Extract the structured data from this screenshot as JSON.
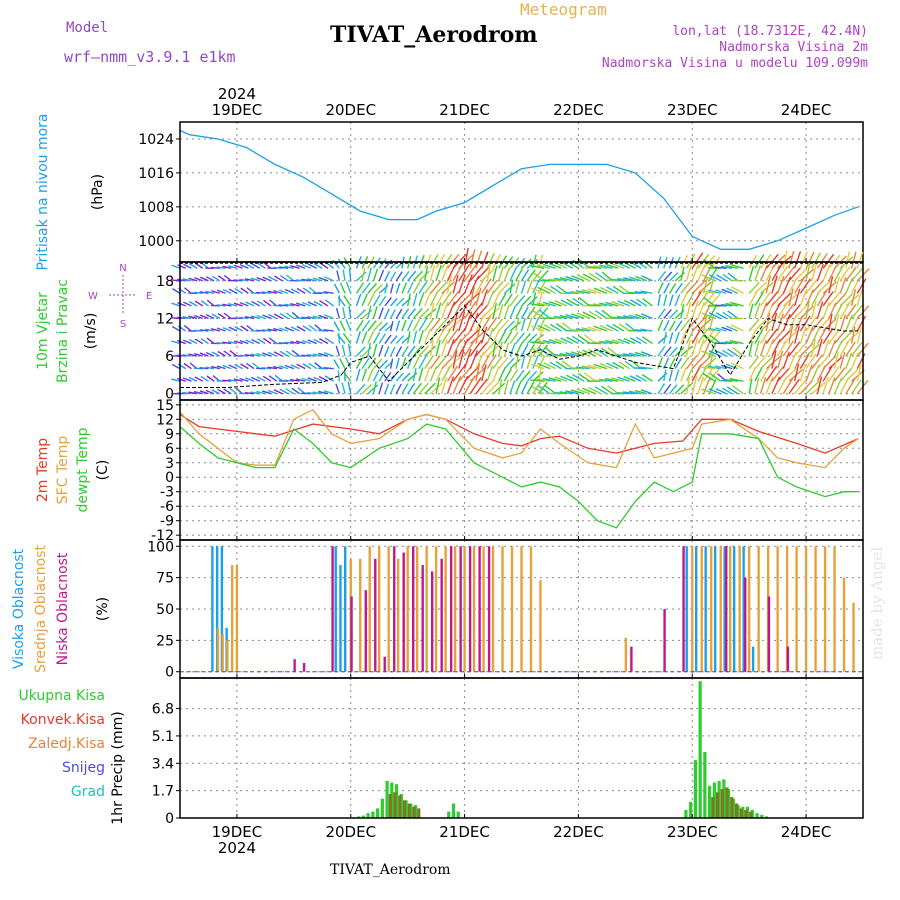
{
  "header": {
    "model_label": "Model",
    "model_name": "wrf–nmm_v3.9.1  e1km",
    "title": "TIVAT_Aerodrom",
    "meteogram": "Meteogram",
    "lonlat": "lon,lat (18.7312E, 42.4N)",
    "elevation": "Nadmorska Visina 2m",
    "model_elevation": "Nadmorska Visina u modelu 109.099m",
    "footer": "TIVAT_Aerodrom",
    "credit": "made by Angel"
  },
  "colors": {
    "pressure": "#1aa0e8",
    "green": "#2ecc2e",
    "red": "#e8392c",
    "orange": "#e6a23a",
    "magenta": "#c0188c",
    "purple": "#8c1cc8",
    "blue": "#4a4af0",
    "cyan": "#1fbfbf",
    "olive": "#7a7a24",
    "brown": "#8a4a1a"
  },
  "chart_data": {
    "x_axis": {
      "type": "time",
      "year": "2024",
      "start": "2024-12-18 12:00",
      "end": "2024-12-24 12:00",
      "ticks": [
        "19DEC",
        "20DEC",
        "21DEC",
        "22DEC",
        "23DEC",
        "24DEC"
      ]
    },
    "panels": [
      {
        "type": "line",
        "ylabel": [
          "Pritisak na nivou mora",
          "(hPa)"
        ],
        "ylim": [
          995,
          1028
        ],
        "yticks": [
          1000,
          1008,
          1016,
          1024
        ],
        "series": [
          {
            "name": "Pritisak na nivou mora",
            "color": "#1aa0e8",
            "x": [
              0,
              2,
              8,
              14,
              20,
              26,
              32,
              38,
              44,
              50,
              54,
              60,
              66,
              72,
              78,
              84,
              90,
              96,
              102,
              108,
              114,
              120,
              126,
              132,
              138,
              143
            ],
            "y": [
              1026,
              1025,
              1024,
              1022,
              1018,
              1015,
              1011,
              1007,
              1005,
              1005,
              1007,
              1009,
              1013,
              1017,
              1018,
              1018,
              1018,
              1016,
              1010,
              1001,
              998,
              998,
              1000,
              1003,
              1006,
              1008
            ]
          }
        ]
      },
      {
        "type": "wind",
        "ylabel": [
          "10m Vjetar",
          "Brzina i Pravac",
          "(m/s)"
        ],
        "ylim": [
          -1,
          21
        ],
        "yticks": [
          0,
          6,
          12,
          18
        ],
        "compass": [
          "N",
          "E",
          "S",
          "W"
        ],
        "series": [
          {
            "name": "Brzina",
            "color": "#000000",
            "x": [
              0,
              10,
              20,
              30,
              34,
              36,
              40,
              44,
              48,
              52,
              56,
              60,
              64,
              68,
              72,
              76,
              80,
              84,
              88,
              96,
              104,
              108,
              112,
              116,
              120,
              124,
              128,
              132,
              136,
              140,
              143
            ],
            "y": [
              1,
              1,
              1.5,
              1.8,
              3,
              5,
              6,
              2,
              5,
              8,
              11,
              14,
              10,
              7,
              6,
              7,
              5.5,
              6,
              7,
              5,
              4,
              12,
              8,
              3,
              8,
              12,
              11,
              11,
              10.5,
              10,
              10
            ]
          }
        ]
      },
      {
        "type": "line",
        "ylabel": [
          "2m Temp",
          "SFC Temp",
          "dewpt Temp",
          "(C)"
        ],
        "ylim": [
          -13,
          16
        ],
        "yticks": [
          -12,
          -9,
          -6,
          -3,
          0,
          3,
          6,
          9,
          12,
          15
        ],
        "series": [
          {
            "name": "2m Temp",
            "color": "#e8392c",
            "x": [
              0,
              4,
              12,
              20,
              28,
              36,
              42,
              48,
              52,
              56,
              62,
              68,
              72,
              76,
              80,
              86,
              92,
              100,
              106,
              110,
              116,
              122,
              130,
              136,
              143
            ],
            "y": [
              13,
              10.5,
              9.5,
              8.5,
              11,
              10,
              9,
              12,
              13,
              12,
              9,
              7,
              6.5,
              8,
              8.5,
              6,
              5,
              7,
              7.5,
              12,
              12,
              9.5,
              7,
              5,
              8
            ]
          },
          {
            "name": "SFC Temp",
            "color": "#e6a23a",
            "x": [
              0,
              4,
              8,
              12,
              16,
              20,
              24,
              28,
              32,
              36,
              42,
              48,
              52,
              56,
              62,
              68,
              72,
              76,
              80,
              86,
              92,
              96,
              100,
              104,
              108,
              110,
              116,
              122,
              126,
              130,
              136,
              140,
              143
            ],
            "y": [
              13.5,
              9,
              6,
              3,
              2.5,
              2.5,
              12,
              14,
              9,
              7,
              8,
              12,
              13,
              12,
              6,
              4,
              5,
              10,
              7,
              3,
              2,
              11,
              4,
              5,
              6,
              11,
              12,
              8,
              4,
              3,
              2,
              6,
              8
            ]
          },
          {
            "name": "dewpt Temp",
            "color": "#2ecc2e",
            "x": [
              0,
              4,
              8,
              12,
              16,
              20,
              24,
              28,
              32,
              36,
              42,
              48,
              52,
              56,
              62,
              68,
              72,
              76,
              80,
              84,
              88,
              92,
              96,
              100,
              104,
              108,
              110,
              116,
              122,
              126,
              130,
              136,
              140,
              143
            ],
            "y": [
              10.5,
              7,
              4,
              3,
              2,
              2,
              10,
              7,
              3,
              2,
              6,
              8,
              11,
              10,
              3,
              0,
              -2,
              -1,
              -2,
              -5,
              -9,
              -10.5,
              -5,
              -1,
              -3,
              -1,
              9,
              9,
              8,
              0,
              -2,
              -4,
              -3,
              -3
            ]
          }
        ]
      },
      {
        "type": "bar",
        "ylabel": [
          "Visoka Oblacnost",
          "Srednja Oblacnost",
          "Niska Oblacnost",
          "(%)"
        ],
        "ylim": [
          -5,
          105
        ],
        "yticks": [
          0,
          25,
          50,
          75,
          100
        ],
        "series": [
          {
            "name": "Visoka Oblacnost",
            "color": "#1aa0e8",
            "x": [
              7,
              8,
              9,
              10,
              33,
              34,
              35,
              107,
              109,
              111,
              113,
              115,
              117,
              119,
              121
            ],
            "y": [
              100,
              100,
              100,
              35,
              100,
              85,
              100,
              100,
              100,
              100,
              100,
              100,
              100,
              100,
              20
            ]
          },
          {
            "name": "Srednja Oblacnost",
            "color": "#e6a23a",
            "x": [
              8,
              9,
              10,
              11,
              12,
              36,
              38,
              40,
              42,
              44,
              46,
              48,
              50,
              52,
              54,
              56,
              58,
              60,
              62,
              64,
              66,
              68,
              70,
              72,
              74,
              76,
              94,
              108,
              110,
              112,
              114,
              116,
              118,
              120,
              122,
              124,
              126,
              128,
              130,
              132,
              134,
              136,
              138,
              140,
              142
            ],
            "y": [
              35,
              30,
              25,
              85,
              85,
              90,
              90,
              100,
              100,
              100,
              90,
              100,
              100,
              100,
              100,
              100,
              100,
              100,
              100,
              100,
              100,
              100,
              100,
              100,
              100,
              73,
              27,
              100,
              100,
              100,
              100,
              100,
              100,
              100,
              100,
              100,
              100,
              100,
              100,
              100,
              100,
              100,
              100,
              75,
              55
            ]
          },
          {
            "name": "Niska Oblacnost",
            "color": "#c0188c",
            "x": [
              24,
              26,
              32,
              36,
              39,
              41,
              43,
              45,
              47,
              49,
              51,
              53,
              55,
              57,
              59,
              61,
              63,
              65,
              95,
              102,
              106,
              115,
              119,
              124,
              128
            ],
            "y": [
              10,
              7,
              100,
              60,
              65,
              90,
              12,
              100,
              95,
              100,
              85,
              80,
              90,
              100,
              100,
              100,
              100,
              100,
              20,
              50,
              100,
              100,
              75,
              60,
              20
            ]
          }
        ]
      },
      {
        "type": "bar",
        "ylabel": [
          "Ukupna Kisa",
          "Konvek.Kisa",
          "Zaledj.Kisa",
          "Snijeg",
          "Grad",
          "1hr Precip (mm)"
        ],
        "ylim": [
          0,
          8.7
        ],
        "yticks": [
          0,
          1.7,
          3.4,
          5.1,
          6.8
        ],
        "series": [
          {
            "name": "Ukupna Kisa",
            "color": "#2ecc2e",
            "x": [
              37,
              38,
              39,
              40,
              41,
              42,
              43,
              44,
              45,
              46,
              47,
              48,
              49,
              50,
              57,
              58,
              59,
              107,
              108,
              109,
              110,
              111,
              112,
              113,
              114,
              115,
              116,
              117,
              118,
              119,
              120,
              121,
              122,
              123,
              124
            ],
            "y": [
              0.05,
              0.1,
              0.15,
              0.3,
              0.4,
              0.6,
              1.2,
              2.3,
              2.2,
              2.1,
              1.5,
              1.1,
              0.9,
              0.8,
              0.4,
              0.9,
              0.4,
              0.5,
              1.0,
              3.6,
              8.5,
              4.1,
              2.0,
              2.2,
              2.3,
              2.4,
              1.8,
              1.2,
              0.8,
              0.7,
              0.7,
              0.5,
              0.3,
              0.2,
              0.1
            ]
          },
          {
            "name": "Konvek.Kisa",
            "color": "#7a7a24",
            "x": [
              44,
              45,
              46,
              47,
              48,
              49,
              50,
              112,
              113,
              114,
              115,
              116,
              117,
              118,
              119,
              120
            ],
            "y": [
              1.5,
              1.6,
              1.4,
              1.1,
              0.9,
              0.7,
              0.6,
              1.3,
              1.6,
              1.8,
              1.9,
              1.3,
              0.9,
              0.6,
              0.5,
              0.4
            ]
          },
          {
            "name": "Zaledj.Kisa",
            "color": "#e6843a",
            "x": [],
            "y": []
          },
          {
            "name": "Snijeg",
            "color": "#4a4af0",
            "x": [],
            "y": []
          },
          {
            "name": "Grad",
            "color": "#1fbfbf",
            "x": [],
            "y": []
          }
        ]
      }
    ]
  }
}
